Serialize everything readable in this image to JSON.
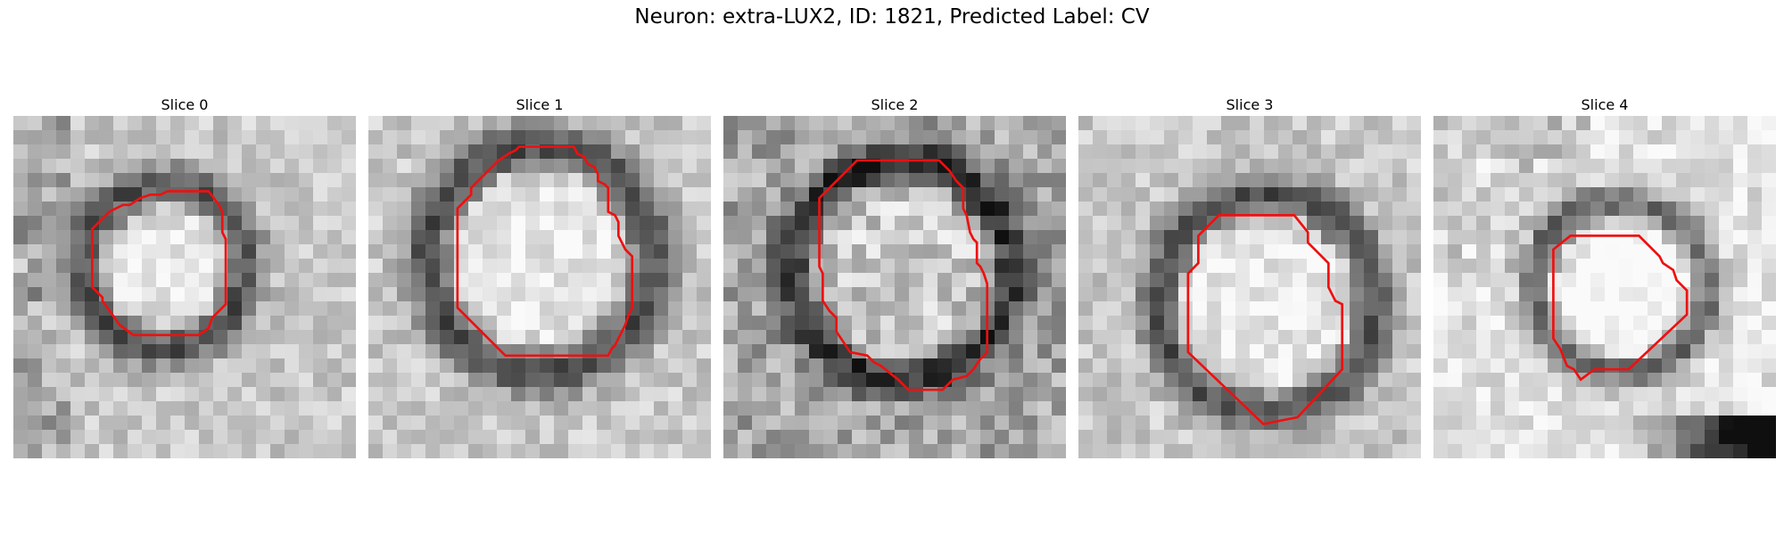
{
  "figure": {
    "title": "Neuron: extra-LUX2, ID: 1821, Predicted Label: CV"
  },
  "slices": [
    {
      "label": "Slice 0",
      "outline": [
        [
          0.45,
          0.22
        ],
        [
          0.57,
          0.22
        ],
        [
          0.6,
          0.26
        ],
        [
          0.61,
          0.28
        ],
        [
          0.61,
          0.34
        ],
        [
          0.62,
          0.36
        ],
        [
          0.62,
          0.55
        ],
        [
          0.58,
          0.59
        ],
        [
          0.57,
          0.62
        ],
        [
          0.54,
          0.64
        ],
        [
          0.35,
          0.64
        ],
        [
          0.31,
          0.61
        ],
        [
          0.26,
          0.54
        ],
        [
          0.26,
          0.53
        ],
        [
          0.23,
          0.5
        ],
        [
          0.23,
          0.33
        ],
        [
          0.25,
          0.31
        ],
        [
          0.28,
          0.28
        ],
        [
          0.3,
          0.27
        ],
        [
          0.32,
          0.26
        ],
        [
          0.34,
          0.26
        ],
        [
          0.37,
          0.24
        ],
        [
          0.4,
          0.23
        ],
        [
          0.43,
          0.23
        ]
      ],
      "tone": "dark-ring-bright-center"
    },
    {
      "label": "Slice 1",
      "outline": [
        [
          0.44,
          0.09
        ],
        [
          0.6,
          0.09
        ],
        [
          0.61,
          0.11
        ],
        [
          0.63,
          0.12
        ],
        [
          0.64,
          0.14
        ],
        [
          0.66,
          0.15
        ],
        [
          0.67,
          0.17
        ],
        [
          0.67,
          0.19
        ],
        [
          0.69,
          0.2
        ],
        [
          0.7,
          0.21
        ],
        [
          0.7,
          0.28
        ],
        [
          0.72,
          0.29
        ],
        [
          0.73,
          0.31
        ],
        [
          0.73,
          0.35
        ],
        [
          0.74,
          0.37
        ],
        [
          0.75,
          0.39
        ],
        [
          0.77,
          0.41
        ],
        [
          0.77,
          0.56
        ],
        [
          0.76,
          0.58
        ],
        [
          0.75,
          0.61
        ],
        [
          0.74,
          0.63
        ],
        [
          0.73,
          0.65
        ],
        [
          0.72,
          0.67
        ],
        [
          0.71,
          0.68
        ],
        [
          0.7,
          0.7
        ],
        [
          0.4,
          0.7
        ],
        [
          0.26,
          0.56
        ],
        [
          0.26,
          0.27
        ],
        [
          0.28,
          0.25
        ],
        [
          0.3,
          0.23
        ],
        [
          0.3,
          0.21
        ],
        [
          0.33,
          0.18
        ],
        [
          0.36,
          0.15
        ],
        [
          0.38,
          0.13
        ],
        [
          0.41,
          0.11
        ],
        [
          0.43,
          0.1
        ]
      ],
      "tone": "dark-ring-bright-center"
    },
    {
      "label": "Slice 2",
      "outline": [
        [
          0.39,
          0.13
        ],
        [
          0.63,
          0.13
        ],
        [
          0.66,
          0.16
        ],
        [
          0.68,
          0.19
        ],
        [
          0.7,
          0.21
        ],
        [
          0.7,
          0.27
        ],
        [
          0.71,
          0.29
        ],
        [
          0.72,
          0.34
        ],
        [
          0.73,
          0.36
        ],
        [
          0.74,
          0.37
        ],
        [
          0.74,
          0.43
        ],
        [
          0.75,
          0.44
        ],
        [
          0.76,
          0.46
        ],
        [
          0.77,
          0.49
        ],
        [
          0.77,
          0.69
        ],
        [
          0.75,
          0.71
        ],
        [
          0.73,
          0.74
        ],
        [
          0.71,
          0.76
        ],
        [
          0.67,
          0.77
        ],
        [
          0.64,
          0.8
        ],
        [
          0.54,
          0.8
        ],
        [
          0.51,
          0.77
        ],
        [
          0.46,
          0.73
        ],
        [
          0.44,
          0.72
        ],
        [
          0.42,
          0.7
        ],
        [
          0.37,
          0.69
        ],
        [
          0.35,
          0.66
        ],
        [
          0.33,
          0.63
        ],
        [
          0.33,
          0.59
        ],
        [
          0.31,
          0.57
        ],
        [
          0.29,
          0.54
        ],
        [
          0.29,
          0.46
        ],
        [
          0.28,
          0.44
        ],
        [
          0.28,
          0.24
        ]
      ],
      "tone": "noisy-gray"
    },
    {
      "label": "Slice 3",
      "outline": [
        [
          0.41,
          0.29
        ],
        [
          0.63,
          0.29
        ],
        [
          0.67,
          0.34
        ],
        [
          0.67,
          0.37
        ],
        [
          0.7,
          0.4
        ],
        [
          0.73,
          0.43
        ],
        [
          0.73,
          0.5
        ],
        [
          0.74,
          0.52
        ],
        [
          0.75,
          0.54
        ],
        [
          0.77,
          0.55
        ],
        [
          0.77,
          0.74
        ],
        [
          0.64,
          0.88
        ],
        [
          0.54,
          0.9
        ],
        [
          0.32,
          0.69
        ],
        [
          0.32,
          0.46
        ],
        [
          0.35,
          0.43
        ],
        [
          0.35,
          0.35
        ]
      ],
      "tone": "dark-ring-bright-center"
    },
    {
      "label": "Slice 4",
      "outline": [
        [
          0.4,
          0.35
        ],
        [
          0.6,
          0.35
        ],
        [
          0.66,
          0.41
        ],
        [
          0.67,
          0.43
        ],
        [
          0.7,
          0.45
        ],
        [
          0.71,
          0.48
        ],
        [
          0.74,
          0.51
        ],
        [
          0.74,
          0.58
        ],
        [
          0.57,
          0.74
        ],
        [
          0.47,
          0.74
        ],
        [
          0.43,
          0.77
        ],
        [
          0.41,
          0.74
        ],
        [
          0.39,
          0.73
        ],
        [
          0.37,
          0.68
        ],
        [
          0.35,
          0.65
        ],
        [
          0.35,
          0.39
        ]
      ],
      "tone": "bright-with-dark-bottom-right"
    }
  ],
  "colors": {
    "outline": "#ee1010"
  }
}
